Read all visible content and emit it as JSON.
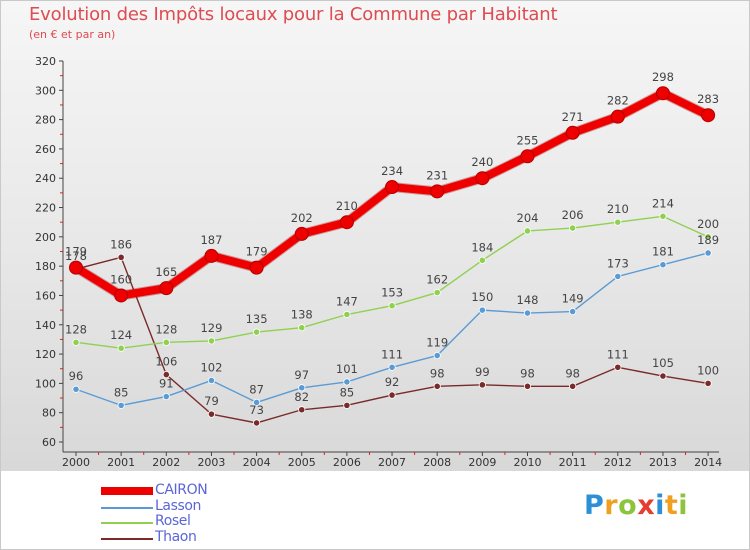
{
  "title": "Evolution des Impôts locaux pour la Commune par Habitant",
  "subtitle": "(en € et par an)",
  "logo": {
    "text": "Proxiti",
    "letters": [
      {
        "ch": "P",
        "color": "#2d8fd5"
      },
      {
        "ch": "r",
        "color": "#f0a020"
      },
      {
        "ch": "o",
        "color": "#8cc43c"
      },
      {
        "ch": "x",
        "color": "#e53d2f"
      },
      {
        "ch": "i",
        "color": "#2d8fd5"
      },
      {
        "ch": "t",
        "color": "#f0a020"
      },
      {
        "ch": "i",
        "color": "#8cc43c"
      }
    ]
  },
  "chart_data": {
    "type": "line",
    "title": "Evolution des Impôts locaux pour la Commune par Habitant",
    "subtitle": "(en € et par an)",
    "xlabel": "",
    "ylabel": "",
    "x": [
      "2000",
      "2001",
      "2002",
      "2003",
      "2004",
      "2005",
      "2006",
      "2007",
      "2008",
      "2009",
      "2010",
      "2011",
      "2012",
      "2013",
      "2014"
    ],
    "ylim": [
      60,
      320
    ],
    "yticks": [
      60,
      80,
      100,
      120,
      140,
      160,
      180,
      200,
      220,
      240,
      260,
      280,
      300,
      320
    ],
    "grid": false,
    "legend": "bottom-left",
    "series": [
      {
        "name": "CAIRON",
        "color": "#ee0000",
        "values": [
          179,
          160,
          165,
          187,
          179,
          202,
          210,
          234,
          231,
          240,
          255,
          271,
          282,
          298,
          283
        ],
        "labels": [
          "179",
          "160",
          "165",
          "187",
          "179",
          "202",
          "210",
          "234",
          "231",
          "240",
          "255",
          "271",
          "282",
          "298",
          "283"
        ]
      },
      {
        "name": "Lasson",
        "color": "#5b9bd5",
        "values": [
          96,
          85,
          91,
          102,
          87,
          97,
          101,
          111,
          119,
          150,
          148,
          149,
          173,
          181,
          189
        ],
        "labels": [
          "96",
          "85",
          "91",
          "102",
          "87",
          "97",
          "101",
          "111",
          "119",
          "150",
          "148",
          "149",
          "173",
          "181",
          "189"
        ]
      },
      {
        "name": "Rosel",
        "color": "#8fd14f",
        "values": [
          128,
          124,
          128,
          129,
          135,
          138,
          147,
          153,
          162,
          184,
          204,
          206,
          210,
          214,
          200
        ],
        "labels": [
          "128",
          "124",
          "128",
          "129",
          "135",
          "138",
          "147",
          "153",
          "162",
          "184",
          "204",
          "206",
          "210",
          "214",
          "200"
        ]
      },
      {
        "name": "Thaon",
        "color": "#7a2a2a",
        "values": [
          178,
          186,
          106,
          79,
          73,
          82,
          85,
          92,
          98,
          99,
          98,
          98,
          111,
          105,
          100
        ],
        "labels": [
          "178",
          "186",
          "106",
          "79",
          "73",
          "82",
          "85",
          "92",
          "98",
          "99",
          "98",
          "98",
          "111",
          "105",
          "100"
        ]
      }
    ]
  }
}
